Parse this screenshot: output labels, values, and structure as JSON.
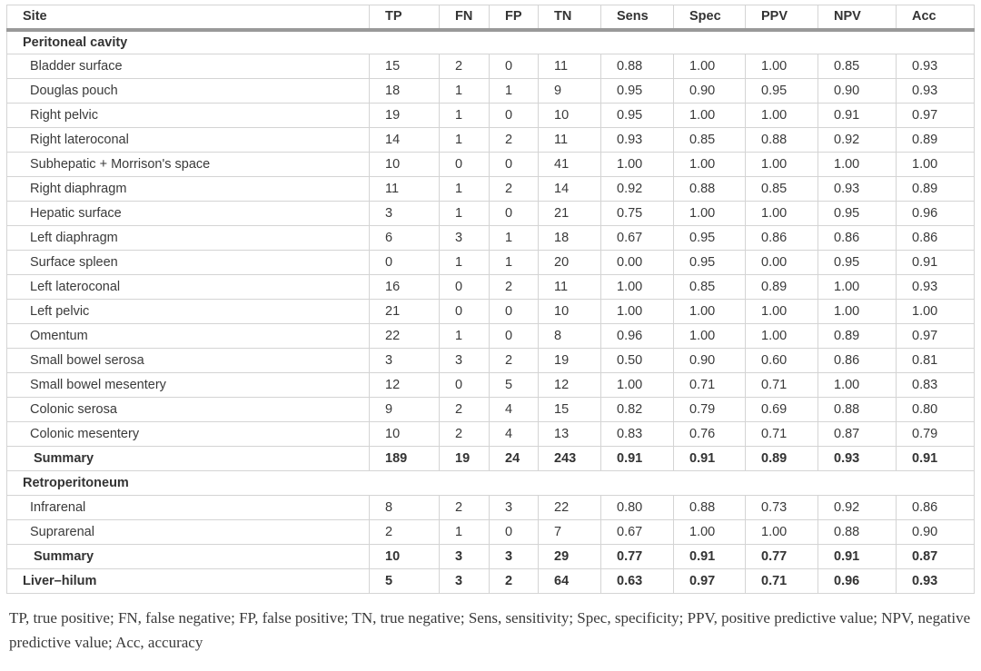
{
  "colors": {
    "header_rule": "#999999",
    "grid_line": "#d4d4d4",
    "text": "#3a3a3a",
    "background": "#ffffff"
  },
  "table": {
    "columns": [
      "Site",
      "TP",
      "FN",
      "FP",
      "TN",
      "Sens",
      "Spec",
      "PPV",
      "NPV",
      "Acc"
    ],
    "rows": [
      {
        "type": "section",
        "site": "Peritoneal cavity"
      },
      {
        "type": "data",
        "site": "Bladder surface",
        "values": [
          "15",
          "2",
          "0",
          "11",
          "0.88",
          "1.00",
          "1.00",
          "0.85",
          "0.93"
        ]
      },
      {
        "type": "data",
        "site": "Douglas pouch",
        "values": [
          "18",
          "1",
          "1",
          "9",
          "0.95",
          "0.90",
          "0.95",
          "0.90",
          "0.93"
        ]
      },
      {
        "type": "data",
        "site": "Right pelvic",
        "values": [
          "19",
          "1",
          "0",
          "10",
          "0.95",
          "1.00",
          "1.00",
          "0.91",
          "0.97"
        ]
      },
      {
        "type": "data",
        "site": "Right lateroconal",
        "values": [
          "14",
          "1",
          "2",
          "11",
          "0.93",
          "0.85",
          "0.88",
          "0.92",
          "0.89"
        ]
      },
      {
        "type": "data",
        "site": "Subhepatic + Morrison's space",
        "values": [
          "10",
          "0",
          "0",
          "41",
          "1.00",
          "1.00",
          "1.00",
          "1.00",
          "1.00"
        ]
      },
      {
        "type": "data",
        "site": "Right diaphragm",
        "values": [
          "11",
          "1",
          "2",
          "14",
          "0.92",
          "0.88",
          "0.85",
          "0.93",
          "0.89"
        ]
      },
      {
        "type": "data",
        "site": "Hepatic surface",
        "values": [
          "3",
          "1",
          "0",
          "21",
          "0.75",
          "1.00",
          "1.00",
          "0.95",
          "0.96"
        ]
      },
      {
        "type": "data",
        "site": "Left diaphragm",
        "values": [
          "6",
          "3",
          "1",
          "18",
          "0.67",
          "0.95",
          "0.86",
          "0.86",
          "0.86"
        ]
      },
      {
        "type": "data",
        "site": "Surface spleen",
        "values": [
          "0",
          "1",
          "1",
          "20",
          "0.00",
          "0.95",
          "0.00",
          "0.95",
          "0.91"
        ]
      },
      {
        "type": "data",
        "site": "Left lateroconal",
        "values": [
          "16",
          "0",
          "2",
          "11",
          "1.00",
          "0.85",
          "0.89",
          "1.00",
          "0.93"
        ]
      },
      {
        "type": "data",
        "site": "Left pelvic",
        "values": [
          "21",
          "0",
          "0",
          "10",
          "1.00",
          "1.00",
          "1.00",
          "1.00",
          "1.00"
        ]
      },
      {
        "type": "data",
        "site": "Omentum",
        "values": [
          "22",
          "1",
          "0",
          "8",
          "0.96",
          "1.00",
          "1.00",
          "0.89",
          "0.97"
        ]
      },
      {
        "type": "data",
        "site": "Small bowel serosa",
        "values": [
          "3",
          "3",
          "2",
          "19",
          "0.50",
          "0.90",
          "0.60",
          "0.86",
          "0.81"
        ]
      },
      {
        "type": "data",
        "site": "Small bowel mesentery",
        "values": [
          "12",
          "0",
          "5",
          "12",
          "1.00",
          "0.71",
          "0.71",
          "1.00",
          "0.83"
        ]
      },
      {
        "type": "data",
        "site": "Colonic serosa",
        "values": [
          "9",
          "2",
          "4",
          "15",
          "0.82",
          "0.79",
          "0.69",
          "0.88",
          "0.80"
        ]
      },
      {
        "type": "data",
        "site": "Colonic mesentery",
        "values": [
          "10",
          "2",
          "4",
          "13",
          "0.83",
          "0.76",
          "0.71",
          "0.87",
          "0.79"
        ]
      },
      {
        "type": "summary",
        "site": "Summary",
        "values": [
          "189",
          "19",
          "24",
          "243",
          "0.91",
          "0.91",
          "0.89",
          "0.93",
          "0.91"
        ]
      },
      {
        "type": "section",
        "site": "Retroperitoneum"
      },
      {
        "type": "data",
        "site": "Infrarenal",
        "values": [
          "8",
          "2",
          "3",
          "22",
          "0.80",
          "0.88",
          "0.73",
          "0.92",
          "0.86"
        ]
      },
      {
        "type": "data",
        "site": "Suprarenal",
        "values": [
          "2",
          "1",
          "0",
          "7",
          "0.67",
          "1.00",
          "1.00",
          "0.88",
          "0.90"
        ]
      },
      {
        "type": "summary",
        "site": "Summary",
        "values": [
          "10",
          "3",
          "3",
          "29",
          "0.77",
          "0.91",
          "0.77",
          "0.91",
          "0.87"
        ]
      },
      {
        "type": "total",
        "site": "Liver–hilum",
        "values": [
          "5",
          "3",
          "2",
          "64",
          "0.63",
          "0.97",
          "0.71",
          "0.96",
          "0.93"
        ]
      }
    ],
    "footnote": "TP, true positive; FN, false negative; FP, false positive; TN, true negative; Sens, sensitivity; Spec, specificity; PPV, positive predictive value; NPV, negative predictive value; Acc, accuracy"
  }
}
